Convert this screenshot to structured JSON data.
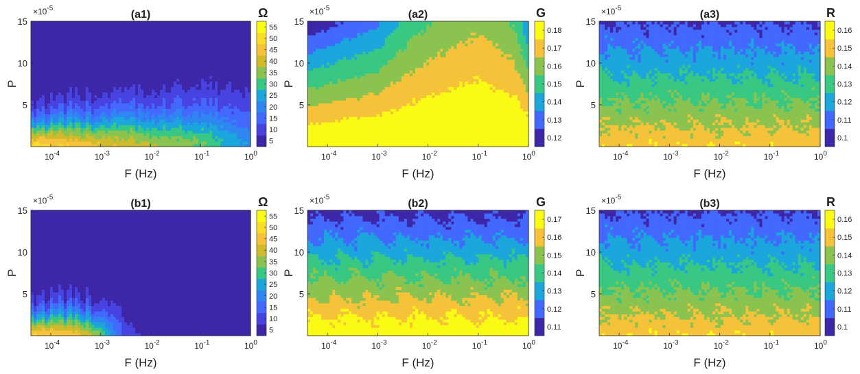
{
  "figure": {
    "panels_order": [
      "a1",
      "a2",
      "a3",
      "b1",
      "b2",
      "b3"
    ]
  },
  "colormap": [
    "#3e26a8",
    "#4743e0",
    "#4268fd",
    "#2f86f1",
    "#1ba6dc",
    "#10bcb4",
    "#38c883",
    "#8ac34f",
    "#cfbb2c",
    "#f6c23a",
    "#fadd28",
    "#f9fb14"
  ],
  "chart_data": [
    {
      "id": "a1",
      "type": "heatmap",
      "title": "(a1)",
      "xlabel": "F (Hz)",
      "ylabel": "P",
      "x_scale": "log",
      "xlim": [
        4e-05,
        1
      ],
      "x_ticks": [
        {
          "base": "10",
          "exp": "-4"
        },
        {
          "base": "10",
          "exp": "-3"
        },
        {
          "base": "10",
          "exp": "-2"
        },
        {
          "base": "10",
          "exp": "-1"
        },
        {
          "base": "10",
          "exp": "0"
        }
      ],
      "y_multiplier": {
        "base": "×10",
        "exp": "-5"
      },
      "ylim": [
        0,
        15
      ],
      "y_ticks": [
        "5",
        "10",
        "15"
      ],
      "colorbar": {
        "label": "Ω",
        "ticks": [
          "5",
          "10",
          "15",
          "20",
          "25",
          "30",
          "35",
          "40",
          "45",
          "50",
          "55"
        ],
        "range": [
          2.5,
          57.5
        ]
      },
      "field": {
        "kind": "omega_a",
        "x_samples": [
          -4.4,
          -4,
          -3,
          -2,
          -1,
          0
        ],
        "peak_near_axis": [
          48,
          45,
          40,
          35,
          30,
          18
        ]
      }
    },
    {
      "id": "a2",
      "type": "heatmap",
      "title": "(a2)",
      "xlabel": "F (Hz)",
      "ylabel": "P",
      "x_scale": "log",
      "xlim": [
        4e-05,
        1
      ],
      "x_ticks": [
        {
          "base": "10",
          "exp": "-4"
        },
        {
          "base": "10",
          "exp": "-3"
        },
        {
          "base": "10",
          "exp": "-2"
        },
        {
          "base": "10",
          "exp": "-1"
        },
        {
          "base": "10",
          "exp": "0"
        }
      ],
      "y_multiplier": {
        "base": "×10",
        "exp": "-5"
      },
      "ylim": [
        0,
        15
      ],
      "y_ticks": [
        "5",
        "10",
        "15"
      ],
      "colorbar": {
        "label": "G",
        "ticks": [
          "0.12",
          "0.13",
          "0.14",
          "0.15",
          "0.16",
          "0.17",
          "0.18"
        ],
        "range": [
          0.11,
          0.182
        ]
      },
      "field": {
        "kind": "g_a",
        "x_samples": [
          -4.4,
          -3,
          -2,
          -1,
          -0.3,
          0
        ],
        "peak_p_of_0.165": [
          2,
          3,
          6,
          9,
          6,
          3
        ]
      }
    },
    {
      "id": "a3",
      "type": "heatmap",
      "title": "(a3)",
      "xlabel": "F (Hz)",
      "ylabel": "P",
      "x_scale": "log",
      "xlim": [
        4e-05,
        1
      ],
      "x_ticks": [
        {
          "base": "10",
          "exp": "-4"
        },
        {
          "base": "10",
          "exp": "-3"
        },
        {
          "base": "10",
          "exp": "-2"
        },
        {
          "base": "10",
          "exp": "-1"
        },
        {
          "base": "10",
          "exp": "0"
        }
      ],
      "y_multiplier": {
        "base": "×10",
        "exp": "-5"
      },
      "ylim": [
        0,
        15
      ],
      "y_ticks": [
        "5",
        "10",
        "15"
      ],
      "colorbar": {
        "label": "R",
        "ticks": [
          "0.1",
          "0.11",
          "0.12",
          "0.13",
          "0.14",
          "0.15",
          "0.16"
        ],
        "range": [
          0.1,
          0.163
        ]
      },
      "field": {
        "kind": "r",
        "value_at_p0": 0.152,
        "value_at_p15": 0.108
      }
    },
    {
      "id": "b1",
      "type": "heatmap",
      "title": "(b1)",
      "xlabel": "F (Hz)",
      "ylabel": "P",
      "x_scale": "log",
      "xlim": [
        4e-05,
        1
      ],
      "x_ticks": [
        {
          "base": "10",
          "exp": "-4"
        },
        {
          "base": "10",
          "exp": "-3"
        },
        {
          "base": "10",
          "exp": "-2"
        },
        {
          "base": "10",
          "exp": "-1"
        },
        {
          "base": "10",
          "exp": "0"
        }
      ],
      "y_multiplier": {
        "base": "×10",
        "exp": "-5"
      },
      "ylim": [
        0,
        15
      ],
      "y_ticks": [
        "5",
        "10",
        "15"
      ],
      "colorbar": {
        "label": "Ω",
        "ticks": [
          "5",
          "10",
          "15",
          "20",
          "25",
          "30",
          "35",
          "40",
          "45",
          "50",
          "55"
        ],
        "range": [
          2.5,
          57.5
        ]
      },
      "field": {
        "kind": "omega_b",
        "x_samples": [
          -4.4,
          -3.5,
          -3,
          -2.5,
          -2,
          0
        ],
        "peak_near_axis": [
          45,
          42,
          30,
          6,
          3,
          3
        ]
      }
    },
    {
      "id": "b2",
      "type": "heatmap",
      "title": "(b2)",
      "xlabel": "F (Hz)",
      "ylabel": "P",
      "x_scale": "log",
      "xlim": [
        4e-05,
        1
      ],
      "x_ticks": [
        {
          "base": "10",
          "exp": "-4"
        },
        {
          "base": "10",
          "exp": "-3"
        },
        {
          "base": "10",
          "exp": "-2"
        },
        {
          "base": "10",
          "exp": "-1"
        },
        {
          "base": "10",
          "exp": "0"
        }
      ],
      "y_multiplier": {
        "base": "×10",
        "exp": "-5"
      },
      "ylim": [
        0,
        15
      ],
      "y_ticks": [
        "5",
        "10",
        "15"
      ],
      "colorbar": {
        "label": "G",
        "ticks": [
          "0.11",
          "0.12",
          "0.13",
          "0.14",
          "0.15",
          "0.16",
          "0.17"
        ],
        "range": [
          0.102,
          0.173
        ]
      },
      "field": {
        "kind": "g_b",
        "value_at_p0": 0.172,
        "value_at_p15": 0.108
      }
    },
    {
      "id": "b3",
      "type": "heatmap",
      "title": "(b3)",
      "xlabel": "F (Hz)",
      "ylabel": "P",
      "x_scale": "log",
      "xlim": [
        4e-05,
        1
      ],
      "x_ticks": [
        {
          "base": "10",
          "exp": "-4"
        },
        {
          "base": "10",
          "exp": "-3"
        },
        {
          "base": "10",
          "exp": "-2"
        },
        {
          "base": "10",
          "exp": "-1"
        },
        {
          "base": "10",
          "exp": "0"
        }
      ],
      "y_multiplier": {
        "base": "×10",
        "exp": "-5"
      },
      "ylim": [
        0,
        15
      ],
      "y_ticks": [
        "5",
        "10",
        "15"
      ],
      "colorbar": {
        "label": "R",
        "ticks": [
          "0.1",
          "0.11",
          "0.12",
          "0.13",
          "0.14",
          "0.15",
          "0.16"
        ],
        "range": [
          0.1,
          0.163
        ]
      },
      "field": {
        "kind": "r",
        "value_at_p0": 0.152,
        "value_at_p15": 0.108
      }
    }
  ]
}
